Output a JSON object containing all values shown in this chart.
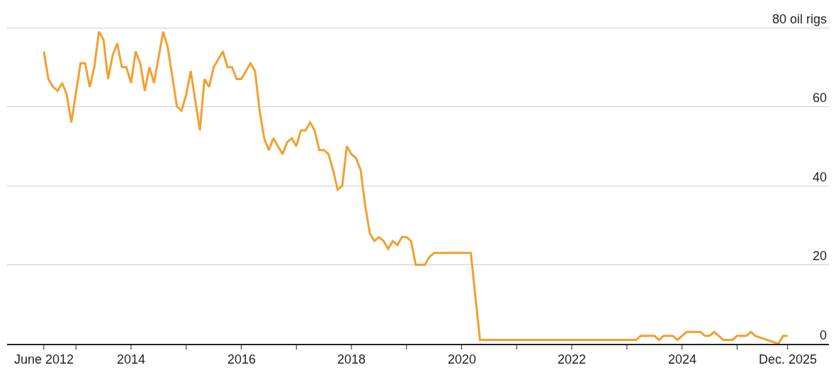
{
  "chart_data": {
    "type": "line",
    "x": [
      "2012-06",
      "2012-07",
      "2012-08",
      "2012-09",
      "2012-10",
      "2012-11",
      "2012-12",
      "2013-02",
      "2013-03",
      "2013-04",
      "2013-05",
      "2013-06",
      "2013-07",
      "2013-08",
      "2013-09",
      "2013-10",
      "2013-11",
      "2013-12",
      "2014-01",
      "2014-02",
      "2014-03",
      "2014-04",
      "2014-05",
      "2014-06",
      "2014-08",
      "2014-09",
      "2014-11",
      "2014-12",
      "2015-01",
      "2015-02",
      "2015-04",
      "2015-05",
      "2015-06",
      "2015-07",
      "2015-09",
      "2015-10",
      "2015-11",
      "2015-12",
      "2016-01",
      "2016-03",
      "2016-04",
      "2016-05",
      "2016-06",
      "2016-07",
      "2016-08",
      "2016-10",
      "2016-11",
      "2016-12",
      "2017-01",
      "2017-02",
      "2017-03",
      "2017-04",
      "2017-05",
      "2017-06",
      "2017-07",
      "2017-08",
      "2017-09",
      "2017-10",
      "2017-11",
      "2017-12",
      "2018-01",
      "2018-02",
      "2018-03",
      "2018-04",
      "2018-05",
      "2018-06",
      "2018-07",
      "2018-08",
      "2018-09",
      "2018-10",
      "2018-11",
      "2018-12",
      "2019-01",
      "2019-02",
      "2019-03",
      "2019-05",
      "2019-06",
      "2019-07",
      "2020-03",
      "2020-05",
      "2023-03",
      "2023-04",
      "2023-07",
      "2023-08",
      "2023-09",
      "2023-11",
      "2023-12",
      "2024-02",
      "2024-05",
      "2024-06",
      "2024-07",
      "2024-08",
      "2024-10",
      "2024-12",
      "2025-01",
      "2025-03",
      "2025-04",
      "2025-05",
      "2025-10",
      "2025-11",
      "2025-12"
    ],
    "series": [
      {
        "color": "#f0a030",
        "values": [
          74,
          67,
          65,
          64,
          66,
          63,
          56,
          71,
          71,
          65,
          70,
          79,
          77,
          67,
          73,
          76,
          70,
          70,
          66,
          74,
          71,
          64,
          70,
          66,
          79,
          75,
          60,
          59,
          63,
          69,
          54,
          67,
          65,
          70,
          74,
          70,
          70,
          67,
          67,
          71,
          69,
          59,
          52,
          49,
          52,
          48,
          51,
          52,
          50,
          54,
          54,
          56,
          54,
          49,
          49,
          48,
          44,
          39,
          40,
          50,
          48,
          47,
          44,
          35,
          28,
          26,
          27,
          26,
          24,
          26,
          25,
          27,
          27,
          26,
          20,
          20,
          22,
          23,
          23,
          1,
          1,
          2,
          2,
          1,
          2,
          2,
          1,
          3,
          3,
          2,
          2,
          3,
          1,
          1,
          2,
          2,
          3,
          2,
          0,
          2,
          2
        ]
      }
    ],
    "xlim": [
      "2011-10",
      "2026-09"
    ],
    "xticks": [
      {
        "value": "2012-06",
        "label": "June 2012"
      },
      {
        "value": "2013",
        "label": null
      },
      {
        "value": "2014",
        "label": "2014"
      },
      {
        "value": "2015",
        "label": null
      },
      {
        "value": "2016",
        "label": "2016"
      },
      {
        "value": "2017",
        "label": null
      },
      {
        "value": "2018",
        "label": "2018"
      },
      {
        "value": "2019",
        "label": null
      },
      {
        "value": "2020",
        "label": "2020"
      },
      {
        "value": "2021",
        "label": null
      },
      {
        "value": "2022",
        "label": "2022"
      },
      {
        "value": "2023",
        "label": null
      },
      {
        "value": "2024",
        "label": "2024"
      },
      {
        "value": "2025",
        "label": null
      },
      {
        "value": "2025-12",
        "label": "Dec. 2025"
      }
    ],
    "ylim": [
      0,
      87
    ],
    "yticks": [
      0,
      20,
      40,
      60,
      {
        "value": 80,
        "label": "80 oil rigs"
      }
    ],
    "grid": "y",
    "legend": false,
    "marker": "none",
    "line_style": "solid"
  }
}
